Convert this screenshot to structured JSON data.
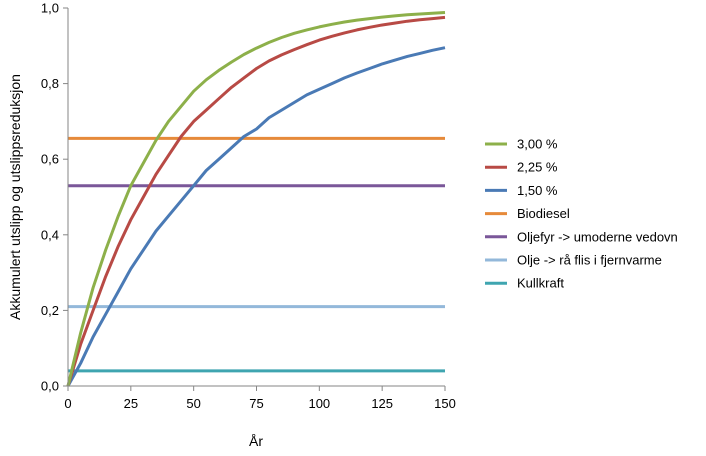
{
  "chart_data": {
    "type": "line",
    "title": "",
    "xlabel": "År",
    "ylabel": "Akkumulert utslipp og utslippsreduksjon",
    "xlim": [
      0,
      150
    ],
    "ylim": [
      0,
      1
    ],
    "x_ticks": [
      "0",
      "25",
      "50",
      "75",
      "100",
      "125",
      "150"
    ],
    "y_ticks": [
      "0,0",
      "0,2",
      "0,4",
      "0,6",
      "0,8",
      "1,0"
    ],
    "grid": false,
    "legend_position": "right",
    "x": [
      0,
      5,
      10,
      15,
      20,
      25,
      30,
      35,
      40,
      45,
      50,
      55,
      60,
      65,
      70,
      75,
      80,
      85,
      90,
      95,
      100,
      105,
      110,
      115,
      120,
      125,
      130,
      135,
      140,
      145,
      150
    ],
    "series": [
      {
        "name": "3,00 %",
        "color": "#8db04a",
        "values": [
          0.0,
          0.14,
          0.26,
          0.36,
          0.45,
          0.53,
          0.59,
          0.65,
          0.7,
          0.74,
          0.78,
          0.81,
          0.835,
          0.857,
          0.877,
          0.894,
          0.909,
          0.922,
          0.933,
          0.942,
          0.95,
          0.957,
          0.963,
          0.968,
          0.972,
          0.976,
          0.979,
          0.982,
          0.984,
          0.986,
          0.988
        ]
      },
      {
        "name": "2,25 %",
        "color": "#b84a45",
        "values": [
          0.0,
          0.11,
          0.2,
          0.29,
          0.37,
          0.44,
          0.5,
          0.56,
          0.61,
          0.66,
          0.7,
          0.73,
          0.76,
          0.79,
          0.815,
          0.84,
          0.86,
          0.876,
          0.89,
          0.903,
          0.915,
          0.925,
          0.934,
          0.942,
          0.949,
          0.955,
          0.96,
          0.965,
          0.969,
          0.972,
          0.975
        ]
      },
      {
        "name": "1,50 %",
        "color": "#4a7ab5",
        "values": [
          0.0,
          0.06,
          0.13,
          0.19,
          0.25,
          0.31,
          0.36,
          0.41,
          0.45,
          0.49,
          0.53,
          0.57,
          0.6,
          0.63,
          0.66,
          0.68,
          0.71,
          0.73,
          0.75,
          0.77,
          0.785,
          0.8,
          0.815,
          0.828,
          0.84,
          0.852,
          0.862,
          0.872,
          0.88,
          0.888,
          0.895
        ]
      },
      {
        "name": "Biodiesel",
        "color": "#e68a3a",
        "values": [
          0.655,
          0.655,
          0.655,
          0.655,
          0.655,
          0.655,
          0.655,
          0.655,
          0.655,
          0.655,
          0.655,
          0.655,
          0.655,
          0.655,
          0.655,
          0.655,
          0.655,
          0.655,
          0.655,
          0.655,
          0.655,
          0.655,
          0.655,
          0.655,
          0.655,
          0.655,
          0.655,
          0.655,
          0.655,
          0.655,
          0.655
        ]
      },
      {
        "name": "Oljefyr -> umoderne vedovn",
        "color": "#7a5799",
        "values": [
          0.53,
          0.53,
          0.53,
          0.53,
          0.53,
          0.53,
          0.53,
          0.53,
          0.53,
          0.53,
          0.53,
          0.53,
          0.53,
          0.53,
          0.53,
          0.53,
          0.53,
          0.53,
          0.53,
          0.53,
          0.53,
          0.53,
          0.53,
          0.53,
          0.53,
          0.53,
          0.53,
          0.53,
          0.53,
          0.53,
          0.53
        ]
      },
      {
        "name": "Olje -> rå flis i fjernvarme",
        "color": "#93b8da",
        "values": [
          0.21,
          0.21,
          0.21,
          0.21,
          0.21,
          0.21,
          0.21,
          0.21,
          0.21,
          0.21,
          0.21,
          0.21,
          0.21,
          0.21,
          0.21,
          0.21,
          0.21,
          0.21,
          0.21,
          0.21,
          0.21,
          0.21,
          0.21,
          0.21,
          0.21,
          0.21,
          0.21,
          0.21,
          0.21,
          0.21,
          0.21
        ]
      },
      {
        "name": "Kullkraft",
        "color": "#3fa5b0",
        "values": [
          0.04,
          0.04,
          0.04,
          0.04,
          0.04,
          0.04,
          0.04,
          0.04,
          0.04,
          0.04,
          0.04,
          0.04,
          0.04,
          0.04,
          0.04,
          0.04,
          0.04,
          0.04,
          0.04,
          0.04,
          0.04,
          0.04,
          0.04,
          0.04,
          0.04,
          0.04,
          0.04,
          0.04,
          0.04,
          0.04,
          0.04
        ]
      }
    ]
  }
}
